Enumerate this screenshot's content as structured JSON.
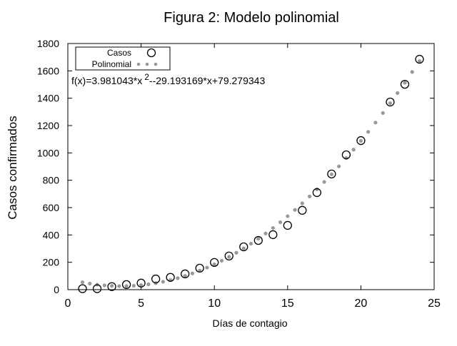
{
  "chart_data": {
    "type": "scatter",
    "title": "Figura 2: Modelo polinomial",
    "xlabel": "Días de contagio",
    "ylabel": "Casos confirmados",
    "xlim": [
      0,
      25
    ],
    "ylim": [
      0,
      1800
    ],
    "xticks": [
      0,
      5,
      10,
      15,
      20,
      25
    ],
    "yticks": [
      0,
      200,
      400,
      600,
      800,
      1000,
      1200,
      1400,
      1600,
      1800
    ],
    "grid": false,
    "legend_position": "top-left",
    "annotation": "f(x)=3.981043*x",
    "annotation_sup": "2",
    "annotation_rest": "--29.193169*x+79.279343",
    "series": [
      {
        "name": "Casos",
        "marker": "open-circle",
        "color": "#000000",
        "x": [
          1,
          2,
          3,
          4,
          5,
          6,
          7,
          8,
          9,
          10,
          11,
          12,
          13,
          14,
          15,
          16,
          17,
          18,
          19,
          20,
          22,
          23,
          24
        ],
        "y": [
          7,
          7,
          22,
          37,
          48,
          78,
          90,
          115,
          157,
          199,
          246,
          313,
          360,
          402,
          470,
          580,
          710,
          846,
          986,
          1090,
          1372,
          1502,
          1685
        ]
      },
      {
        "name": "Polinomial",
        "marker": "gray-dots",
        "color": "#999999",
        "coefficients": {
          "a": 3.981043,
          "b": -29.193169,
          "c": 79.279343
        },
        "x_range": [
          1,
          24
        ],
        "step": 0.5
      }
    ]
  }
}
